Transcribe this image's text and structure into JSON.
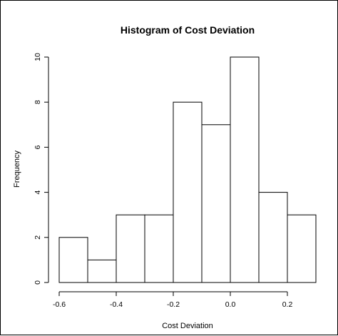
{
  "chart_data": {
    "type": "bar",
    "title": "Histogram of Cost Deviation",
    "xlabel": "Cost Deviation",
    "ylabel": "Frequency",
    "bins": [
      {
        "from": -0.6,
        "to": -0.5,
        "count": 2
      },
      {
        "from": -0.5,
        "to": -0.4,
        "count": 1
      },
      {
        "from": -0.4,
        "to": -0.3,
        "count": 3
      },
      {
        "from": -0.3,
        "to": -0.2,
        "count": 3
      },
      {
        "from": -0.2,
        "to": -0.1,
        "count": 8
      },
      {
        "from": -0.1,
        "to": 0.0,
        "count": 7
      },
      {
        "from": 0.0,
        "to": 0.1,
        "count": 10
      },
      {
        "from": 0.1,
        "to": 0.2,
        "count": 4
      },
      {
        "from": 0.2,
        "to": 0.3,
        "count": 3
      }
    ],
    "xticks": [
      "-0.6",
      "-0.4",
      "-0.2",
      "0.0",
      "0.2"
    ],
    "xtick_values": [
      -0.6,
      -0.4,
      -0.2,
      0.0,
      0.2
    ],
    "yticks": [
      "0",
      "2",
      "4",
      "6",
      "8",
      "10"
    ],
    "ytick_values": [
      0,
      2,
      4,
      6,
      8,
      10
    ],
    "xlim": [
      -0.6,
      0.3
    ],
    "ylim": [
      0,
      10
    ],
    "grid": false,
    "bar_fill": "#ffffff",
    "bar_stroke": "#000000"
  }
}
